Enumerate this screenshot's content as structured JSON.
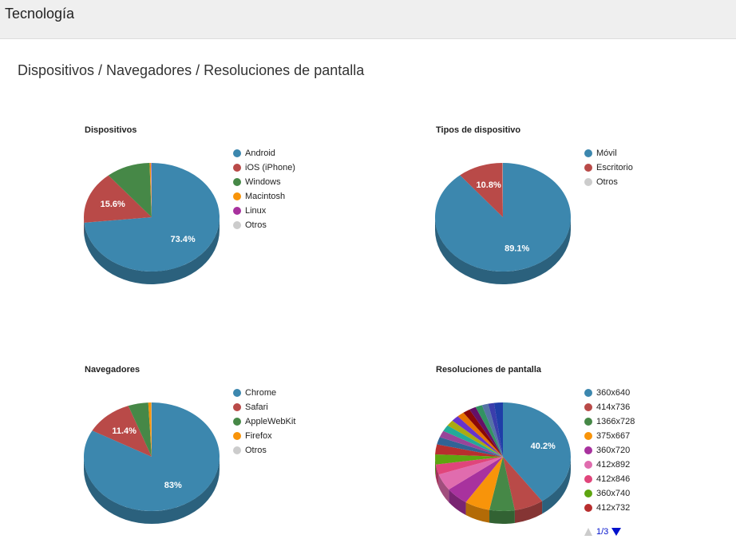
{
  "header": {
    "title": "Tecnología"
  },
  "section_title": "Dispositivos / Navegadores / Resoluciones de pantalla",
  "chart_data": [
    {
      "type": "pie3d",
      "title": "Dispositivos",
      "categories": [
        "Android",
        "iOS (iPhone)",
        "Windows",
        "Macintosh",
        "Linux",
        "Otros"
      ],
      "values": [
        73.4,
        15.6,
        10.5,
        0.3,
        0.1,
        0.1
      ],
      "value_labels": [
        "73.4%",
        "15.6%",
        null,
        null,
        null,
        null
      ],
      "colors": [
        "#3c87ae",
        "#b94a48",
        "#468847",
        "#f8940a",
        "#a8329e",
        "#cccccc"
      ]
    },
    {
      "type": "pie3d",
      "title": "Tipos de dispositivo",
      "categories": [
        "Móvil",
        "Escritorio",
        "Otros"
      ],
      "values": [
        89.1,
        10.8,
        0.1
      ],
      "value_labels": [
        "89.1%",
        "10.8%",
        null
      ],
      "colors": [
        "#3c87ae",
        "#b94a48",
        "#cccccc"
      ]
    },
    {
      "type": "pie3d",
      "title": "Navegadores",
      "categories": [
        "Chrome",
        "Safari",
        "AppleWebKit",
        "Firefox",
        "Otros"
      ],
      "values": [
        83,
        11.4,
        4.8,
        0.7,
        0.1
      ],
      "value_labels": [
        "83%",
        "11.4%",
        null,
        null,
        null
      ],
      "colors": [
        "#3c87ae",
        "#b94a48",
        "#468847",
        "#f8940a",
        "#cccccc"
      ]
    },
    {
      "type": "pie3d",
      "title": "Resoluciones de pantalla",
      "categories": [
        "360x640",
        "414x736",
        "1366x728",
        "375x667",
        "360x720",
        "412x892",
        "412x846",
        "360x740",
        "412x732",
        null,
        null,
        null,
        null,
        null,
        null,
        null,
        null,
        null,
        null,
        null,
        null
      ],
      "values": [
        40.2,
        7,
        6,
        6,
        5.5,
        5,
        3,
        3,
        3,
        2.2,
        2.0,
        1.9,
        1.8,
        1.8,
        1.7,
        1.7,
        1.6,
        1.6,
        1.5,
        1.4,
        2.1
      ],
      "value_labels": [
        "40.2%",
        null,
        null,
        null,
        null,
        null,
        null,
        null,
        null,
        null,
        null,
        null,
        null,
        null,
        null,
        null,
        null,
        null,
        null,
        null,
        null
      ],
      "colors": [
        "#3c87ae",
        "#b94a48",
        "#468847",
        "#f8940a",
        "#a8329e",
        "#e06cae",
        "#e0457b",
        "#5ea510",
        "#b82e2e",
        "#316395",
        "#994499",
        "#22aa99",
        "#aaaa11",
        "#6633cc",
        "#e67300",
        "#8b0707",
        "#651067",
        "#329262",
        "#5574a6",
        "#3b3eac",
        "#1f3ea8"
      ],
      "legend_page": "1/3"
    }
  ]
}
